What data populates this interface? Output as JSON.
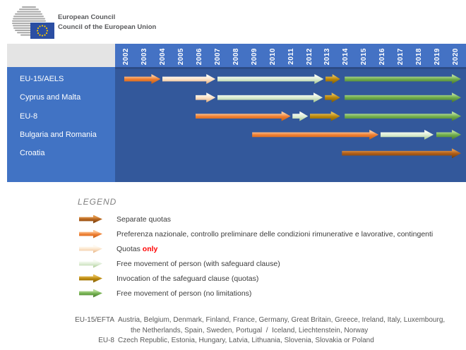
{
  "masthead": {
    "org_line1": "European Council",
    "org_line2": "Council of the European Union",
    "logo": {
      "flag_blue": "#2b4ea3",
      "star_yellow": "#f7c700",
      "lines_gray": "#a9a9a9"
    }
  },
  "chart_data": {
    "type": "timeline-gantt",
    "title": "",
    "x_axis": {
      "years": [
        2002,
        2003,
        2004,
        2005,
        2006,
        2007,
        2008,
        2009,
        2010,
        2011,
        2012,
        2013,
        2014,
        2015,
        2016,
        2017,
        2018,
        2019,
        2020
      ],
      "start_year": 2002,
      "end_year": 2020
    },
    "rows": [
      {
        "label": "EU-15/AELS",
        "segments": [
          {
            "type": "preferenza_nazionale",
            "from": 2002,
            "to": 2004
          },
          {
            "type": "quotas_only",
            "from": 2004.1,
            "to": 2007
          },
          {
            "type": "fmp_safeguard",
            "from": 2007.1,
            "to": 2012.9
          },
          {
            "type": "safeguard_invoked",
            "from": 2013,
            "to": 2013.8
          },
          {
            "type": "fmp_no_limit",
            "from": 2014.05,
            "to": 2020.4
          }
        ]
      },
      {
        "label": "Cyprus and Malta",
        "segments": [
          {
            "type": "quotas_only",
            "from": 2005.9,
            "to": 2007
          },
          {
            "type": "fmp_safeguard",
            "from": 2007.1,
            "to": 2012.85
          },
          {
            "type": "safeguard_invoked",
            "from": 2012.97,
            "to": 2013.8
          },
          {
            "type": "fmp_no_limit",
            "from": 2014.05,
            "to": 2020.4
          }
        ]
      },
      {
        "label": "EU-8",
        "segments": [
          {
            "type": "preferenza_nazionale",
            "from": 2005.9,
            "to": 2011.1
          },
          {
            "type": "fmp_safeguard",
            "from": 2011.2,
            "to": 2012.05
          },
          {
            "type": "safeguard_invoked",
            "from": 2012.15,
            "to": 2013.8
          },
          {
            "type": "fmp_no_limit",
            "from": 2014.05,
            "to": 2020.4
          }
        ]
      },
      {
        "label": "Bulgaria and Romania",
        "segments": [
          {
            "type": "preferenza_nazionale",
            "from": 2009,
            "to": 2015.9
          },
          {
            "type": "fmp_safeguard",
            "from": 2016,
            "to": 2018.9
          },
          {
            "type": "fmp_no_limit",
            "from": 2019.05,
            "to": 2020.4
          }
        ]
      },
      {
        "label": "Croatia",
        "segments": [
          {
            "type": "separate_quotas",
            "from": 2013.9,
            "to": 2020.4
          }
        ]
      }
    ],
    "arrow_styles": {
      "separate_quotas": {
        "base": "#b05f1a",
        "light": "#e0964a",
        "dark": "#6e3c0e"
      },
      "preferenza_nazionale": {
        "base": "#ee7e32",
        "light": "#fcc493",
        "dark": "#c05c12"
      },
      "quotas_only": {
        "base": "#fbe3c8",
        "light": "#fffaf2",
        "dark": "#e4ad7a"
      },
      "fmp_safeguard": {
        "base": "#dcecd3",
        "light": "#f6fbf2",
        "dark": "#a4c78c"
      },
      "safeguard_invoked": {
        "base": "#b8860b",
        "light": "#e2b94e",
        "dark": "#7c5a06"
      },
      "fmp_no_limit": {
        "base": "#6fad4c",
        "light": "#b2d993",
        "dark": "#477330"
      }
    },
    "layout_hints": {
      "header_band_color": "#4472c4",
      "label_column_color": "#4173c4",
      "plot_area_color": "#33589b",
      "header_left_color": "#e4e4e4"
    }
  },
  "legend": {
    "title": "LEGEND",
    "highlight_color": "#ff0000",
    "items": [
      {
        "type": "separate_quotas",
        "label": "Separate quotas",
        "label_red": ""
      },
      {
        "type": "preferenza_nazionale",
        "label": "Preferenza nazionale, controllo preliminare delle condizioni rimunerative e lavorative, contingenti",
        "label_red": ""
      },
      {
        "type": "quotas_only",
        "label": "Quotas ",
        "label_red": "only"
      },
      {
        "type": "fmp_safeguard",
        "label": "Free movement of person (with safeguard clause)",
        "label_red": ""
      },
      {
        "type": "safeguard_invoked",
        "label": "Invocation of the safeguard clause (quotas)",
        "label_red": ""
      },
      {
        "type": "fmp_no_limit",
        "label": "Free movement of person (no limitations)",
        "label_red": ""
      }
    ]
  },
  "footnotes": [
    {
      "term": "EU-15/EFTA",
      "definition_line1": "Austria, Belgium, Denmark, Finland, France, Germany, Great Britain, Greece, Ireland, Italy, Luxembourg,",
      "definition_line2": "the Netherlands, Spain, Sweden, Portugal  /  Iceland, Liechtenstein, Norway"
    },
    {
      "term": "EU-8",
      "definition_line1": "Czech Republic, Estonia, Hungary, Latvia, Lithuania, Slovenia, Slovakia or Poland",
      "definition_line2": ""
    }
  ]
}
